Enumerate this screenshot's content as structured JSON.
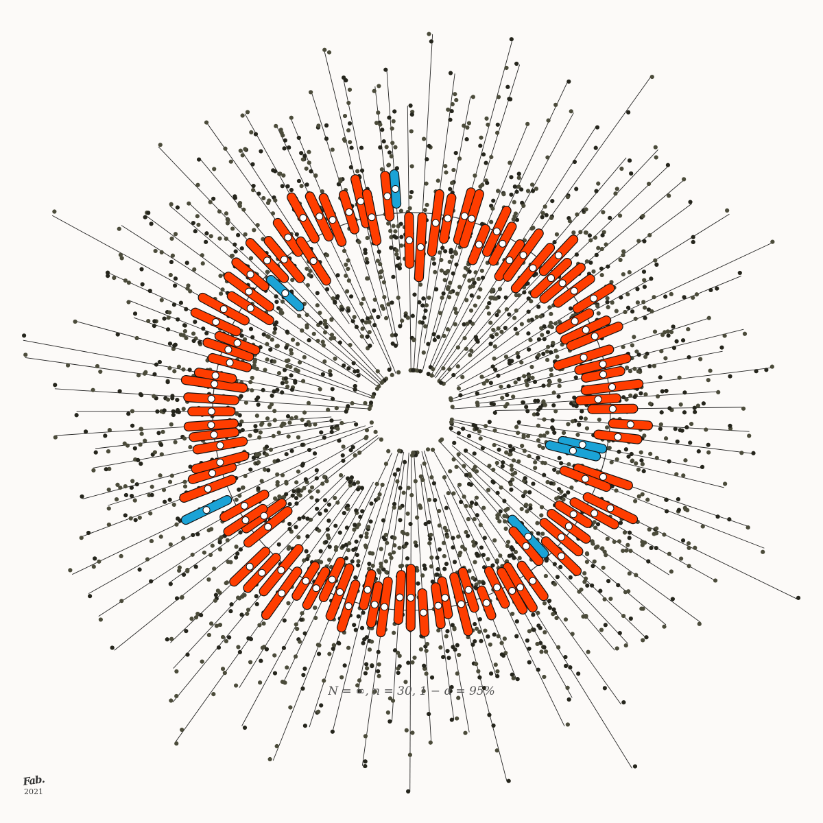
{
  "chart_data": {
    "type": "radial-confidence-intervals",
    "title": "",
    "caption": "N = ∞, n = 30, 1 − α = 95%",
    "population_size": "∞",
    "sample_size": 30,
    "confidence_level": 0.95,
    "intervals_count_estimate": 100,
    "intervals_missing_true_mean_estimate": 7,
    "legend": "none",
    "grid": false
  },
  "colors": {
    "background": "#fcfaf8",
    "interval_covering": "#ff3d00",
    "interval_missing": "#1ba3d6",
    "sample_point": "#4b4b3a",
    "sample_point_dark": "#25251c",
    "sample_mean": "#ffffff",
    "ray": "#222222"
  },
  "signature": {
    "mark": "Fab.",
    "year": "2021"
  }
}
